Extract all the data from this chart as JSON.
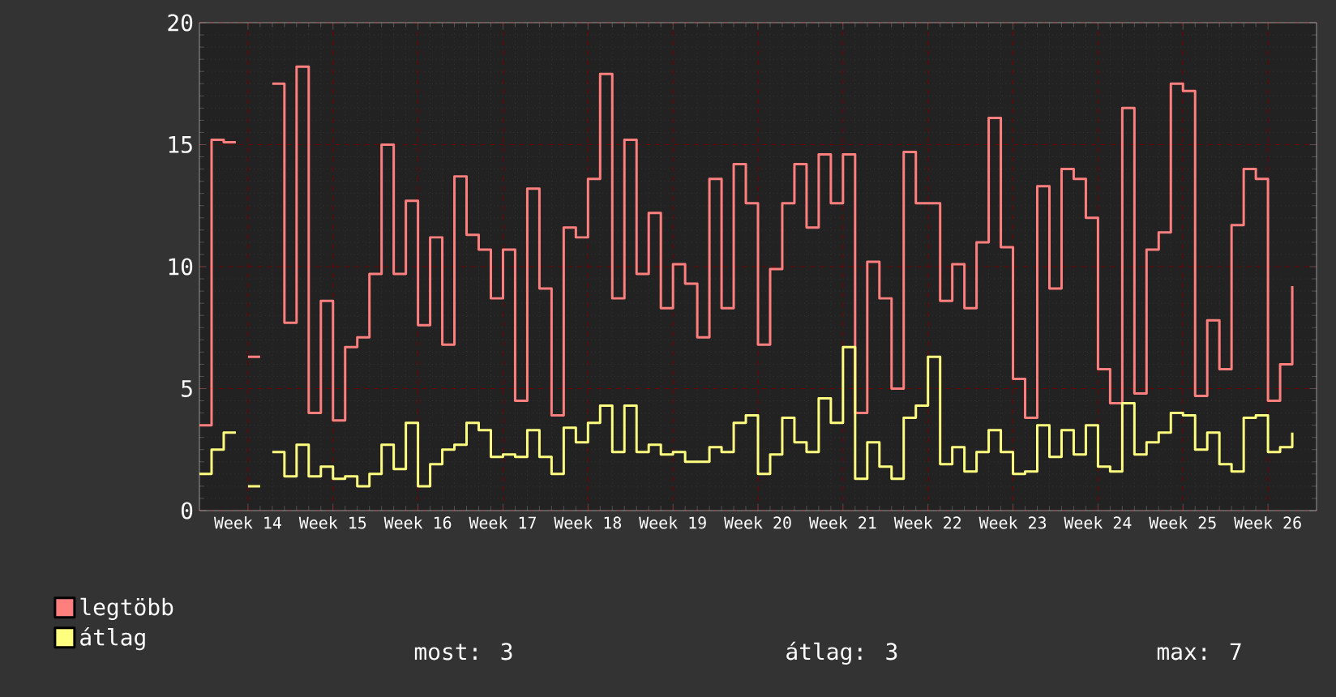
{
  "chart_data": {
    "type": "step",
    "categories": [
      null,
      null,
      null,
      null,
      "Week 14",
      null,
      null,
      null,
      null,
      null,
      null,
      "Week 15",
      null,
      null,
      null,
      null,
      null,
      null,
      "Week 16",
      null,
      null,
      null,
      null,
      null,
      null,
      "Week 17",
      null,
      null,
      null,
      null,
      null,
      null,
      "Week 18",
      null,
      null,
      null,
      null,
      null,
      null,
      "Week 19",
      null,
      null,
      null,
      null,
      null,
      null,
      "Week 20",
      null,
      null,
      null,
      null,
      null,
      null,
      "Week 21",
      null,
      null,
      null,
      null,
      null,
      null,
      "Week 22",
      null,
      null,
      null,
      null,
      null,
      null,
      "Week 23",
      null,
      null,
      null,
      null,
      null,
      null,
      "Week 24",
      null,
      null,
      null,
      null,
      null,
      null,
      "Week 25",
      null,
      null,
      null,
      null,
      null,
      null,
      "Week 26",
      null,
      null
    ],
    "series": [
      {
        "name": "legtöbb",
        "color": "#ff7f7f",
        "values": [
          3.5,
          15.2,
          15.1,
          null,
          6.3,
          null,
          17.5,
          7.7,
          18.2,
          4.0,
          8.6,
          3.7,
          6.7,
          7.1,
          9.7,
          15.0,
          9.7,
          12.7,
          7.6,
          11.2,
          6.8,
          13.7,
          11.3,
          10.7,
          8.7,
          10.7,
          4.5,
          13.2,
          9.1,
          3.9,
          11.6,
          11.2,
          13.6,
          17.9,
          8.7,
          15.2,
          9.7,
          12.2,
          8.3,
          10.1,
          9.3,
          7.1,
          13.6,
          8.3,
          14.2,
          12.6,
          6.8,
          9.9,
          12.6,
          14.2,
          11.6,
          14.6,
          12.6,
          14.6,
          4.0,
          10.2,
          8.7,
          5.0,
          14.7,
          12.6,
          12.6,
          8.6,
          10.1,
          8.3,
          11.0,
          16.1,
          10.8,
          5.4,
          3.8,
          13.3,
          9.1,
          14.0,
          13.6,
          12.0,
          5.8,
          4.4,
          16.5,
          4.8,
          10.7,
          11.4,
          17.5,
          17.2,
          4.7,
          7.8,
          5.8,
          11.7,
          14.0,
          13.6,
          4.5,
          6.0,
          9.2
        ]
      },
      {
        "name": "átlag",
        "color": "#ffff7f",
        "values": [
          1.5,
          2.5,
          3.2,
          null,
          1.0,
          null,
          2.4,
          1.4,
          2.7,
          1.4,
          1.8,
          1.3,
          1.4,
          1.0,
          1.5,
          2.7,
          1.7,
          3.6,
          1.0,
          1.9,
          2.5,
          2.7,
          3.6,
          3.3,
          2.2,
          2.3,
          2.2,
          3.3,
          2.2,
          1.5,
          3.4,
          2.8,
          3.6,
          4.3,
          2.4,
          4.3,
          2.4,
          2.7,
          2.3,
          2.4,
          2.0,
          2.0,
          2.6,
          2.4,
          3.6,
          3.9,
          1.5,
          2.3,
          3.8,
          2.8,
          2.4,
          4.6,
          3.6,
          6.7,
          1.3,
          2.8,
          1.8,
          1.3,
          3.8,
          4.3,
          6.3,
          1.9,
          2.6,
          1.6,
          2.4,
          3.3,
          2.4,
          1.5,
          1.6,
          3.5,
          2.2,
          3.3,
          2.3,
          3.5,
          1.8,
          1.6,
          4.4,
          2.3,
          2.8,
          3.2,
          4.0,
          3.9,
          2.5,
          3.2,
          1.9,
          1.6,
          3.8,
          3.9,
          2.4,
          2.6,
          3.2
        ]
      }
    ],
    "ylim": [
      0,
      20
    ],
    "yticks": [
      0,
      5,
      10,
      15,
      20
    ],
    "grid": true,
    "legend": "bottom left",
    "annotations": [
      "most: 3",
      "átlag: 3",
      "max: 7"
    ]
  }
}
